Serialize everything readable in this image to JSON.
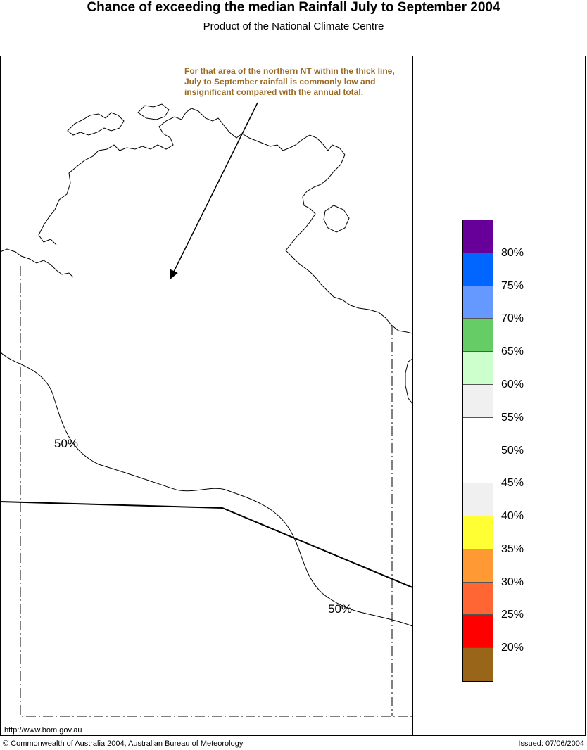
{
  "header": {
    "title": "Chance of exceeding the median Rainfall July to September 2004",
    "subtitle": "Product of the National Climate Centre"
  },
  "map": {
    "annotation": "For that area of the northern NT within the thick line, July to September rainfall is commonly low and insignificant compared with the annual total.",
    "contour_labels": [
      "50%",
      "50%"
    ]
  },
  "legend": {
    "colors": [
      "#660099",
      "#0066ff",
      "#6699ff",
      "#66cc66",
      "#ccffcc",
      "#f0f0f0",
      "#ffffff",
      "#ffffff",
      "#f0f0f0",
      "#ffff33",
      "#ff9933",
      "#ff6633",
      "#ff0000",
      "#996619"
    ],
    "labels": [
      "80%",
      "75%",
      "70%",
      "65%",
      "60%",
      "55%",
      "50%",
      "45%",
      "40%",
      "35%",
      "30%",
      "25%",
      "20%"
    ]
  },
  "footer": {
    "url": "http://www.bom.gov.au",
    "copyright": "© Commonwealth of Australia 2004, Australian Bureau of Meteorology",
    "issued": "Issued: 07/06/2004"
  }
}
